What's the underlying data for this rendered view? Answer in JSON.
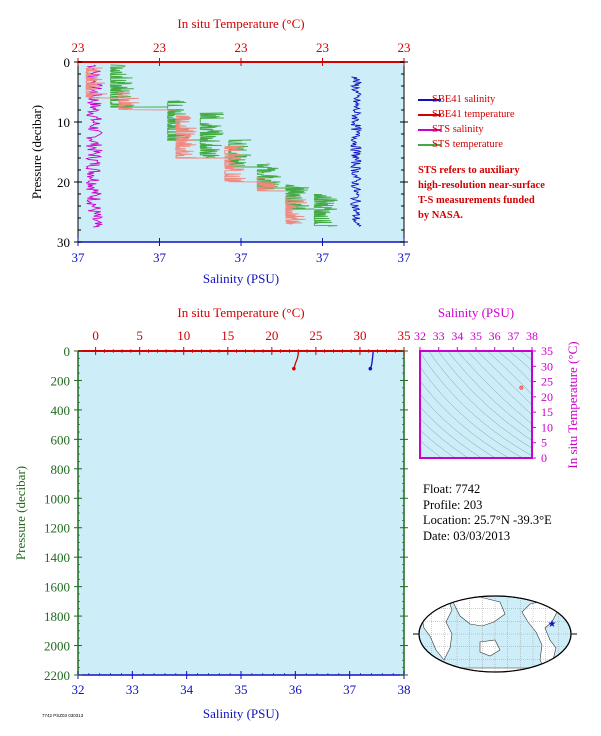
{
  "float_info": {
    "float": "Float:  7742",
    "profile": "Profile:  203",
    "location": "Location:  25.7°N  -39.3°E",
    "date": "Date:  03/03/2013"
  },
  "footnote": "7742 PSZ03 030313",
  "note_lines": [
    "STS refers to auxiliary",
    "high-resolution near-surface",
    "T-S measurements funded",
    "by NASA."
  ],
  "colors": {
    "salinity": "#1010c0",
    "temperature": "#d40000",
    "sts_salinity": "#cc00cc",
    "sts_temperature": "#44aa44",
    "plot_bg": "#cdeef9",
    "ts_axis": "#cc00cc",
    "pressure_axis": "#1f6b1f"
  },
  "chart_data": [
    {
      "type": "line",
      "panel": "near-surface profile",
      "top_axis": {
        "label": "In situ Temperature (°C)",
        "ticks": [
          "23",
          "23",
          "23",
          "23",
          "23"
        ],
        "range": [
          22.96,
          23.04
        ]
      },
      "bottom_axis": {
        "label": "Salinity (PSU)",
        "ticks": [
          "37",
          "37",
          "37",
          "37",
          "37"
        ],
        "range": [
          37.36,
          37.44
        ]
      },
      "y_axis": {
        "label": "Pressure (decibar)",
        "ticks": [
          "0",
          "10",
          "20",
          "30"
        ],
        "range": [
          0,
          30
        ],
        "inverted": true
      },
      "legend": [
        "SBE41 salinity",
        "SBE41 temperature",
        "STS salinity",
        "STS temperature"
      ],
      "series": [
        {
          "name": "STS salinity",
          "axis": "salinity",
          "mean_x": 37.364,
          "p_range": [
            0.5,
            27.5
          ]
        },
        {
          "name": "STS temperature",
          "axis": "temperature",
          "steps": [
            {
              "p": [
                0.5,
                7.5
              ],
              "x": 22.968
            },
            {
              "p": [
                6.5,
                13
              ],
              "x": 22.982
            },
            {
              "p": [
                8.5,
                16
              ],
              "x": 22.99
            },
            {
              "p": [
                13,
                17.5
              ],
              "x": 22.997
            },
            {
              "p": [
                17,
                21
              ],
              "x": 23.004
            },
            {
              "p": [
                20.5,
                24.5
              ],
              "x": 23.011
            },
            {
              "p": [
                22,
                27.3
              ],
              "x": 23.018
            }
          ]
        },
        {
          "name": "SBE41 temperature",
          "axis": "temperature",
          "steps": [
            {
              "p": [
                1,
                6
              ],
              "x": 22.962
            },
            {
              "p": [
                5,
                8
              ],
              "x": 22.97
            },
            {
              "p": [
                9,
                16
              ],
              "x": 22.984
            },
            {
              "p": [
                14,
                20
              ],
              "x": 22.996
            },
            {
              "p": [
                19,
                21.5
              ],
              "x": 23.004
            },
            {
              "p": [
                22.5,
                27
              ],
              "x": 23.011
            }
          ]
        },
        {
          "name": "SBE41 salinity",
          "axis": "salinity",
          "mean_x": 37.4282,
          "p_range": [
            2.5,
            27.5
          ]
        }
      ]
    },
    {
      "type": "line",
      "panel": "full-depth profile",
      "top_axis": {
        "label": "In situ Temperature (°C)",
        "ticks": [
          "0",
          "5",
          "10",
          "15",
          "20",
          "25",
          "30",
          "35"
        ],
        "range": [
          -2,
          35
        ]
      },
      "bottom_axis": {
        "label": "Salinity (PSU)",
        "ticks": [
          "32",
          "33",
          "34",
          "35",
          "36",
          "37",
          "38"
        ],
        "range": [
          32,
          38
        ]
      },
      "y_axis": {
        "label": "Pressure (decibar)",
        "ticks": [
          "0",
          "200",
          "400",
          "600",
          "800",
          "1000",
          "1200",
          "1400",
          "1600",
          "1800",
          "2000",
          "2200"
        ],
        "range": [
          0,
          2200
        ],
        "inverted": true
      },
      "series": [
        {
          "name": "temperature",
          "x": [
            23.0,
            23.0,
            22.9,
            22.7,
            22.6,
            22.5
          ],
          "y": [
            0,
            20,
            50,
            80,
            100,
            120
          ]
        },
        {
          "name": "salinity",
          "x": [
            37.43,
            37.43,
            37.42,
            37.41,
            37.4,
            37.38
          ],
          "y": [
            0,
            20,
            50,
            80,
            100,
            120
          ]
        }
      ]
    },
    {
      "type": "scatter",
      "panel": "T-S diagram",
      "top_axis": {
        "label": "Salinity (PSU)",
        "ticks": [
          "32",
          "33",
          "34",
          "35",
          "36",
          "37",
          "38"
        ],
        "range": [
          32,
          38
        ]
      },
      "right_axis": {
        "label": "In situ Temperature (°C)",
        "ticks": [
          "0",
          "5",
          "10",
          "15",
          "20",
          "25",
          "30",
          "35"
        ],
        "range": [
          0,
          35
        ]
      },
      "points": [
        {
          "s": 37.43,
          "t": 23.0
        }
      ]
    },
    {
      "type": "map",
      "panel": "location map",
      "marker": {
        "lat": 25.7,
        "lon": -39.3
      }
    }
  ]
}
